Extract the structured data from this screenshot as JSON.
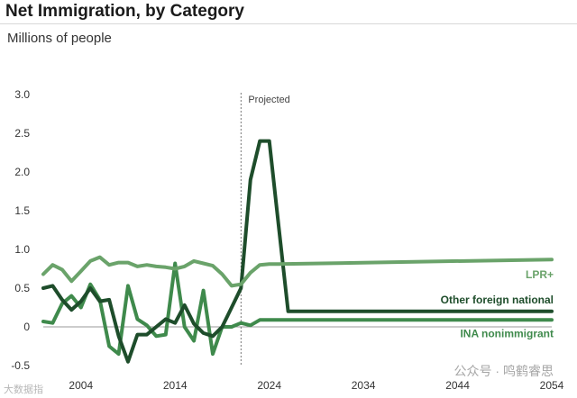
{
  "header": {
    "title": "Net Immigration, by Category",
    "subtitle": "Millions of people"
  },
  "watermark": {
    "text": "公众号 · 鸣鹤睿思",
    "source_text": "大数据指"
  },
  "colors": {
    "lpr": "#6aa36a",
    "other_foreign": "#1e4d2b",
    "ina": "#3f8a4c",
    "zero_line": "#999999",
    "projected_line": "#777777"
  },
  "chart_data": {
    "type": "line",
    "title": "Net Immigration, by Category",
    "ylabel": "Millions of people",
    "xlabel": "",
    "xlim": [
      2000,
      2054
    ],
    "ylim": [
      -0.5,
      3.0
    ],
    "y_ticks": [
      "3.0",
      "2.5",
      "2.0",
      "1.5",
      "1.0",
      "0.5",
      "0",
      "-0.5"
    ],
    "y_tick_values": [
      3.0,
      2.5,
      2.0,
      1.5,
      1.0,
      0.5,
      0,
      -0.5
    ],
    "x_ticks": [
      "2004",
      "2014",
      "2024",
      "2034",
      "2044",
      "2054"
    ],
    "x_tick_values": [
      2004,
      2014,
      2024,
      2034,
      2044,
      2054
    ],
    "projected_start": 2021,
    "projected_label": "Projected",
    "series": [
      {
        "name": "LPR+",
        "label": "LPR+",
        "color": "#6aa36a",
        "x": [
          2000,
          2001,
          2002,
          2003,
          2004,
          2005,
          2006,
          2007,
          2008,
          2009,
          2010,
          2011,
          2012,
          2013,
          2014,
          2015,
          2016,
          2017,
          2018,
          2019,
          2020,
          2021,
          2022,
          2023,
          2024,
          2025,
          2054
        ],
        "values": [
          0.68,
          0.8,
          0.74,
          0.59,
          0.72,
          0.85,
          0.9,
          0.8,
          0.83,
          0.83,
          0.78,
          0.8,
          0.78,
          0.77,
          0.75,
          0.78,
          0.85,
          0.82,
          0.79,
          0.68,
          0.53,
          0.55,
          0.7,
          0.8,
          0.81,
          0.81,
          0.87
        ]
      },
      {
        "name": "Other foreign national",
        "label": "Other foreign national",
        "color": "#1e4d2b",
        "x": [
          2000,
          2001,
          2002,
          2003,
          2004,
          2005,
          2006,
          2007,
          2008,
          2009,
          2010,
          2011,
          2012,
          2013,
          2014,
          2015,
          2016,
          2017,
          2018,
          2019,
          2020,
          2021,
          2022,
          2023,
          2024,
          2025,
          2026,
          2054
        ],
        "values": [
          0.5,
          0.53,
          0.35,
          0.22,
          0.33,
          0.5,
          0.33,
          0.35,
          -0.12,
          -0.45,
          -0.1,
          -0.1,
          0.0,
          0.1,
          0.05,
          0.28,
          0.04,
          -0.08,
          -0.12,
          0.0,
          0.25,
          0.5,
          1.9,
          2.4,
          2.4,
          1.3,
          0.2,
          0.2
        ]
      },
      {
        "name": "INA nonimmigrant",
        "label": "INA nonimmigrant",
        "color": "#3f8a4c",
        "x": [
          2000,
          2001,
          2002,
          2003,
          2004,
          2005,
          2006,
          2007,
          2008,
          2009,
          2010,
          2011,
          2012,
          2013,
          2014,
          2015,
          2016,
          2017,
          2018,
          2019,
          2020,
          2021,
          2022,
          2023,
          2054
        ],
        "values": [
          0.07,
          0.05,
          0.3,
          0.4,
          0.25,
          0.55,
          0.35,
          -0.25,
          -0.35,
          0.53,
          0.1,
          0.02,
          -0.12,
          -0.1,
          0.82,
          0.0,
          -0.18,
          0.47,
          -0.35,
          0.0,
          0.0,
          0.05,
          0.02,
          0.09,
          0.09
        ]
      }
    ]
  }
}
